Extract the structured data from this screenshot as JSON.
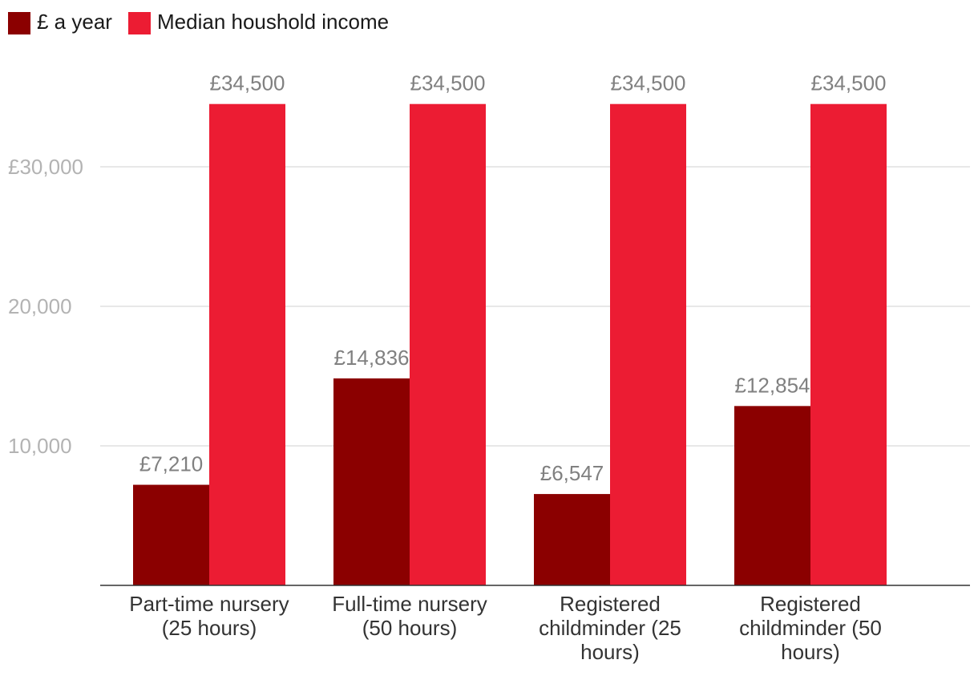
{
  "chart_data": {
    "type": "bar",
    "title": "",
    "xlabel": "",
    "ylabel": "",
    "ylim": [
      0,
      35000
    ],
    "yticks": [
      {
        "value": 10000,
        "label": "10,000"
      },
      {
        "value": 20000,
        "label": "20,000"
      },
      {
        "value": 30000,
        "label": "£30,000"
      }
    ],
    "grid": true,
    "legend_position": "top-left",
    "categories": [
      [
        "Part-time nursery",
        "(25 hours)"
      ],
      [
        "Full-time nursery",
        "(50 hours)"
      ],
      [
        "Registered",
        "childminder (25",
        "hours)"
      ],
      [
        "Registered",
        "childminder (50",
        "hours)"
      ]
    ],
    "series": [
      {
        "name": "£ a year",
        "color": "#8b0000",
        "values": [
          7210,
          14836,
          6547,
          12854
        ],
        "labels": [
          "£7,210",
          "£14,836",
          "£6,547",
          "£12,854"
        ]
      },
      {
        "name": "Median houshold income",
        "color": "#ec1c33",
        "values": [
          34500,
          34500,
          34500,
          34500
        ],
        "labels": [
          "£34,500",
          "£34,500",
          "£34,500",
          "£34,500"
        ]
      }
    ]
  }
}
